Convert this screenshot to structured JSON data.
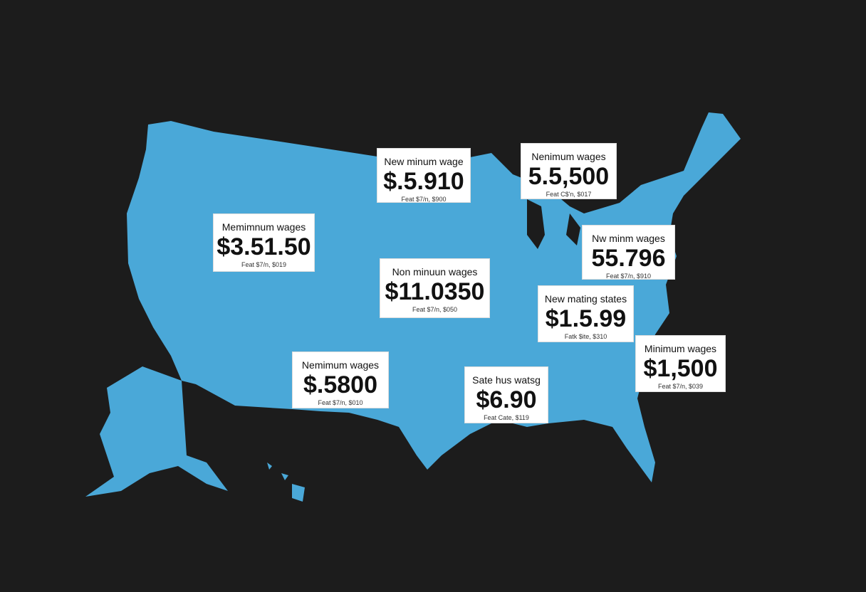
{
  "labels": [
    {
      "title": "New minum wage",
      "value": "$.5.910",
      "note": "Feat $7/n, $900"
    },
    {
      "title": "Nenimum wages",
      "value": "5.5,500",
      "note": "Feat C$'n, $017"
    },
    {
      "title": "Memimnum wages",
      "value": "$3.51.50",
      "note": "Feat $7/n, $019"
    },
    {
      "title": "Nw minm wages",
      "value": "55.796",
      "note": "Feat $7/n, $910"
    },
    {
      "title": "Non minuun wages",
      "value": "$11.0350",
      "note": "Feat $7/n, $050"
    },
    {
      "title": "New mating states",
      "value": "$1.5.99",
      "note": "Fatk $ite, $310"
    },
    {
      "title": "Nemimum wages",
      "value": "$.5800",
      "note": "Feat $7/n, $010"
    },
    {
      "title": "Sate hus watsg",
      "value": "$6.90",
      "note": "Feat Cate, $119"
    },
    {
      "title": "Minimum wages",
      "value": "$1,500",
      "note": "Feat $7/n, $039"
    }
  ]
}
